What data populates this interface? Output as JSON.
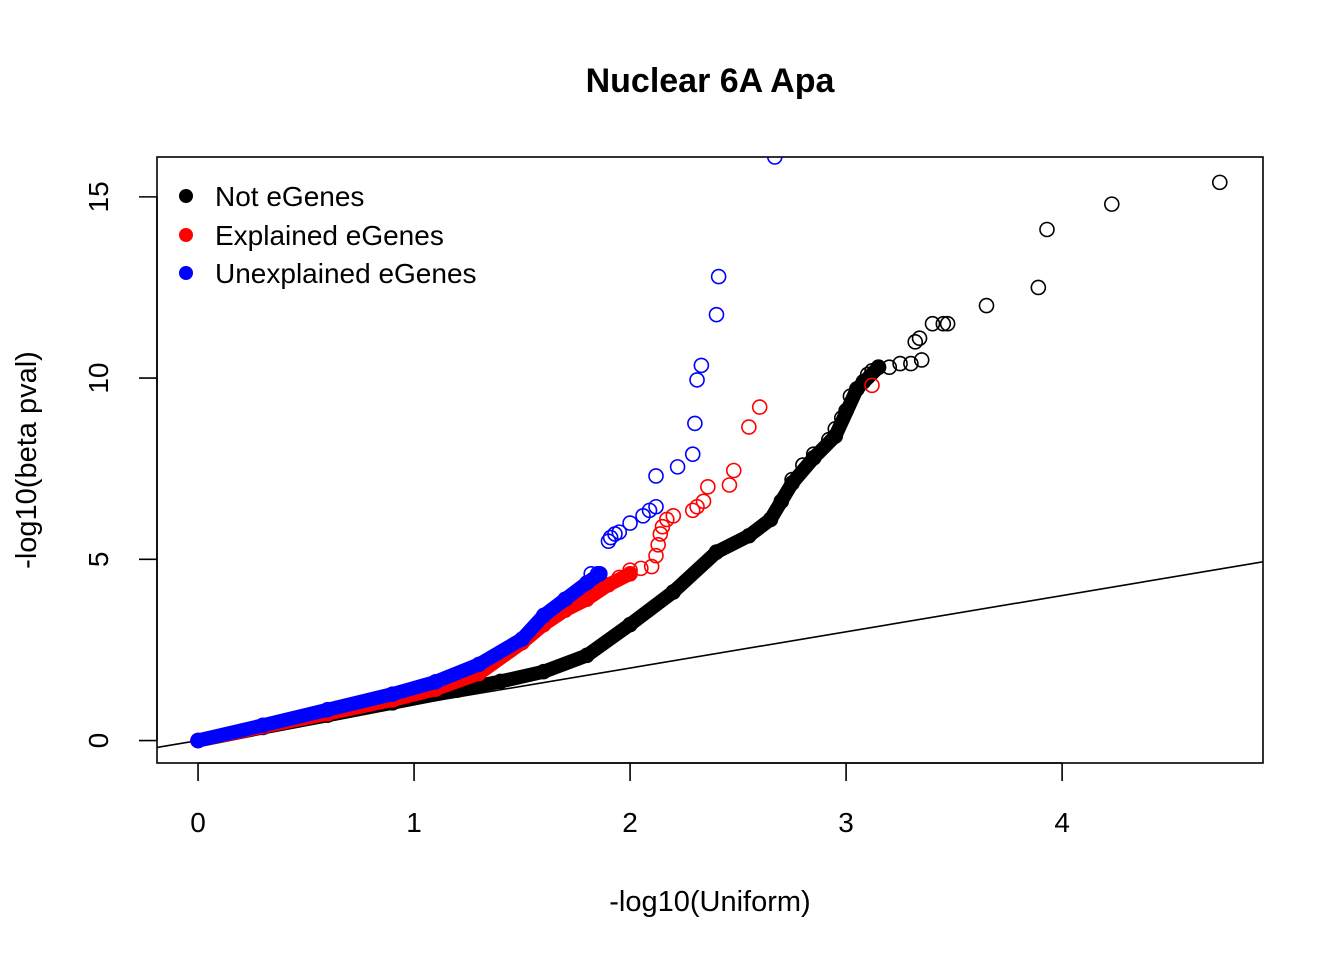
{
  "chart_data": {
    "type": "scatter",
    "title": "Nuclear 6A Apa",
    "xlabel": "-log10(Uniform)",
    "ylabel": "-log10(beta pval)",
    "xlim": [
      -0.19,
      4.93
    ],
    "ylim": [
      -0.62,
      16.1
    ],
    "x_ticks": [
      0,
      1,
      2,
      3,
      4
    ],
    "y_ticks": [
      0,
      5,
      10,
      15
    ],
    "grid": false,
    "legend_position": "top-left",
    "reference_line": {
      "intercept": 0,
      "slope": 1
    },
    "series": [
      {
        "name": "Not eGenes",
        "color": "#000000",
        "marker": "open-circle",
        "dense_curve": [
          [
            0,
            0
          ],
          [
            0.3,
            0.36
          ],
          [
            0.6,
            0.7
          ],
          [
            0.9,
            1.04
          ],
          [
            1.2,
            1.39
          ],
          [
            1.4,
            1.63
          ],
          [
            1.6,
            1.9
          ],
          [
            1.8,
            2.35
          ],
          [
            2.0,
            3.2
          ],
          [
            2.2,
            4.1
          ],
          [
            2.4,
            5.2
          ],
          [
            2.55,
            5.65
          ],
          [
            2.65,
            6.1
          ],
          [
            2.75,
            7.1
          ],
          [
            2.85,
            7.8
          ],
          [
            2.95,
            8.4
          ],
          [
            3.05,
            9.7
          ],
          [
            3.15,
            10.3
          ]
        ],
        "points": [
          [
            2.7,
            6.6
          ],
          [
            2.75,
            7.2
          ],
          [
            2.8,
            7.6
          ],
          [
            2.85,
            7.9
          ],
          [
            2.92,
            8.3
          ],
          [
            2.95,
            8.6
          ],
          [
            2.98,
            8.9
          ],
          [
            3.0,
            9.1
          ],
          [
            3.02,
            9.5
          ],
          [
            3.05,
            9.7
          ],
          [
            3.08,
            9.9
          ],
          [
            3.1,
            10.1
          ],
          [
            3.12,
            10.2
          ],
          [
            3.15,
            10.3
          ],
          [
            3.2,
            10.3
          ],
          [
            3.25,
            10.4
          ],
          [
            3.3,
            10.4
          ],
          [
            3.35,
            10.5
          ],
          [
            3.32,
            11.0
          ],
          [
            3.34,
            11.1
          ],
          [
            3.4,
            11.5
          ],
          [
            3.45,
            11.5
          ],
          [
            3.47,
            11.5
          ],
          [
            3.65,
            12.0
          ],
          [
            3.89,
            12.5
          ],
          [
            3.93,
            14.1
          ],
          [
            4.23,
            14.8
          ],
          [
            4.73,
            15.4
          ]
        ]
      },
      {
        "name": "Explained eGenes",
        "color": "#ff0000",
        "marker": "open-circle",
        "dense_curve": [
          [
            0,
            0
          ],
          [
            0.3,
            0.38
          ],
          [
            0.6,
            0.74
          ],
          [
            0.9,
            1.12
          ],
          [
            1.1,
            1.42
          ],
          [
            1.3,
            1.85
          ],
          [
            1.5,
            2.7
          ],
          [
            1.6,
            3.2
          ],
          [
            1.7,
            3.6
          ],
          [
            1.8,
            3.9
          ],
          [
            1.9,
            4.3
          ],
          [
            2.0,
            4.6
          ]
        ],
        "points": [
          [
            1.95,
            4.5
          ],
          [
            2.0,
            4.7
          ],
          [
            2.05,
            4.75
          ],
          [
            2.1,
            4.8
          ],
          [
            2.12,
            5.1
          ],
          [
            2.13,
            5.4
          ],
          [
            2.14,
            5.7
          ],
          [
            2.15,
            5.9
          ],
          [
            2.17,
            6.1
          ],
          [
            2.2,
            6.2
          ],
          [
            2.29,
            6.35
          ],
          [
            2.31,
            6.45
          ],
          [
            2.34,
            6.6
          ],
          [
            2.36,
            7.0
          ],
          [
            2.46,
            7.05
          ],
          [
            2.48,
            7.45
          ],
          [
            2.55,
            8.65
          ],
          [
            2.6,
            9.2
          ],
          [
            3.12,
            9.8
          ]
        ]
      },
      {
        "name": "Unexplained eGenes",
        "color": "#0000ff",
        "marker": "open-circle",
        "dense_curve": [
          [
            0,
            0
          ],
          [
            0.3,
            0.42
          ],
          [
            0.6,
            0.85
          ],
          [
            0.9,
            1.28
          ],
          [
            1.1,
            1.62
          ],
          [
            1.3,
            2.1
          ],
          [
            1.5,
            2.8
          ],
          [
            1.6,
            3.45
          ],
          [
            1.7,
            3.9
          ],
          [
            1.8,
            4.35
          ],
          [
            1.86,
            4.6
          ]
        ],
        "points": [
          [
            1.82,
            4.6
          ],
          [
            1.85,
            4.6
          ],
          [
            1.9,
            5.5
          ],
          [
            1.91,
            5.6
          ],
          [
            1.93,
            5.7
          ],
          [
            1.95,
            5.75
          ],
          [
            2.0,
            6.0
          ],
          [
            2.06,
            6.2
          ],
          [
            2.09,
            6.35
          ],
          [
            2.12,
            6.45
          ],
          [
            2.12,
            7.3
          ],
          [
            2.22,
            7.55
          ],
          [
            2.29,
            7.9
          ],
          [
            2.3,
            8.75
          ],
          [
            2.31,
            9.95
          ],
          [
            2.33,
            10.35
          ],
          [
            2.4,
            11.75
          ],
          [
            2.41,
            12.8
          ],
          [
            2.67,
            16.1
          ]
        ]
      }
    ]
  }
}
